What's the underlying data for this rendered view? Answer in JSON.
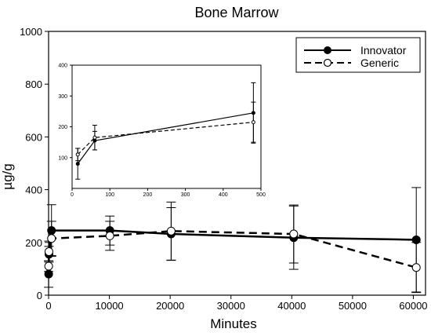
{
  "chart_data": [
    {
      "type": "line",
      "title": "Bone Marrow",
      "xlabel": "Minutes",
      "ylabel": "µg/g",
      "xlim": [
        0,
        62000
      ],
      "ylim": [
        0,
        1000
      ],
      "xticks": [
        "0",
        "10000",
        "20000",
        "30000",
        "40000",
        "50000",
        "60000"
      ],
      "xtick_values": [
        0,
        10000,
        20000,
        30000,
        40000,
        50000,
        60000
      ],
      "yticks": [
        "0",
        "200",
        "400",
        "600",
        "800",
        "1000"
      ],
      "ytick_values": [
        0,
        200,
        400,
        600,
        800,
        1000
      ],
      "legend": "top-right",
      "series": [
        {
          "name": "Innovator",
          "style": "solid",
          "marker": "filled-circle",
          "color": "#000000",
          "x": [
            15,
            60,
            480,
            10080,
            20160,
            40320,
            60480
          ],
          "y": [
            80,
            155,
            245,
            245,
            232,
            218,
            210
          ],
          "err": [
            50,
            30,
            98,
            55,
            100,
            120,
            198
          ]
        },
        {
          "name": "Generic",
          "style": "dashed",
          "marker": "open-circle",
          "color": "#000000",
          "x": [
            15,
            60,
            480,
            10080,
            20160,
            40320,
            60480
          ],
          "y": [
            110,
            165,
            215,
            225,
            243,
            232,
            105
          ],
          "err": [
            20,
            40,
            65,
            55,
            110,
            110,
            95
          ]
        }
      ]
    },
    {
      "type": "line",
      "title": "",
      "xlim": [
        0,
        500
      ],
      "ylim": [
        0,
        400
      ],
      "xticks": [
        "0",
        "100",
        "200",
        "300",
        "400",
        "500"
      ],
      "xtick_values": [
        0,
        100,
        200,
        300,
        400,
        500
      ],
      "yticks": [
        "100",
        "200",
        "300",
        "400"
      ],
      "ytick_values": [
        100,
        200,
        300,
        400
      ],
      "series": [
        {
          "name": "Innovator",
          "style": "solid",
          "marker": "filled-circle",
          "x": [
            15,
            60,
            480
          ],
          "y": [
            80,
            155,
            245
          ],
          "err": [
            50,
            30,
            98
          ]
        },
        {
          "name": "Generic",
          "style": "dashed",
          "marker": "open-circle",
          "x": [
            15,
            60,
            480
          ],
          "y": [
            110,
            165,
            215
          ],
          "err": [
            20,
            40,
            65
          ]
        }
      ]
    }
  ]
}
